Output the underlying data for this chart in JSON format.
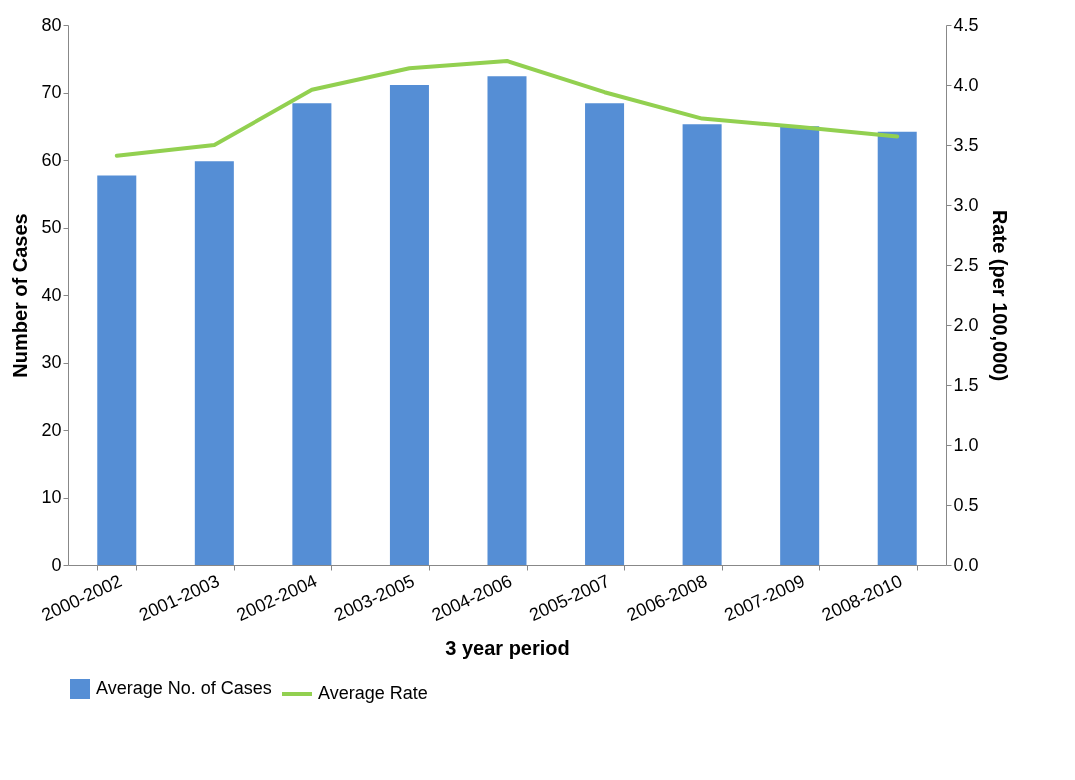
{
  "chart_data": {
    "type": "bar",
    "xlabel": "3 year period",
    "ylabel": "Number of Cases",
    "y2label": "Rate (per 100,000)",
    "categories": [
      "2000-2002",
      "2001-2003",
      "2002-2004",
      "2003-2005",
      "2004-2006",
      "2005-2007",
      "2006-2008",
      "2007-2009",
      "2008-2010"
    ],
    "series": [
      {
        "name": "Average No. of Cases",
        "color": "#558ed5",
        "values": [
          57.7,
          59.8,
          68.4,
          71.1,
          72.4,
          68.4,
          65.3,
          65.0,
          64.2
        ]
      },
      {
        "name": "Average Rate",
        "type": "line",
        "axis": "y2",
        "color": "#92d050",
        "values": [
          3.41,
          3.5,
          3.96,
          4.14,
          4.2,
          3.94,
          3.72,
          3.65,
          3.57
        ]
      }
    ],
    "ylim": [
      0,
      80
    ],
    "yticks": [
      0,
      10,
      20,
      30,
      40,
      50,
      60,
      70,
      80
    ],
    "y2lim": [
      0,
      4.5
    ],
    "y2ticks": [
      {
        "value": 0,
        "label": "0.0"
      },
      {
        "value": 0.5,
        "label": "0.5"
      },
      {
        "value": 1,
        "label": "1.0"
      },
      {
        "value": 1.5,
        "label": "1.5"
      },
      {
        "value": 2,
        "label": "2.0"
      },
      {
        "value": 2.5,
        "label": "2.5"
      },
      {
        "value": 3,
        "label": "3.0"
      },
      {
        "value": 3.5,
        "label": "3.5"
      },
      {
        "value": 4,
        "label": "4.0"
      },
      {
        "value": 4.5,
        "label": "4.5"
      }
    ],
    "grid": false,
    "legend": "bottom",
    "line_style": "solid"
  }
}
